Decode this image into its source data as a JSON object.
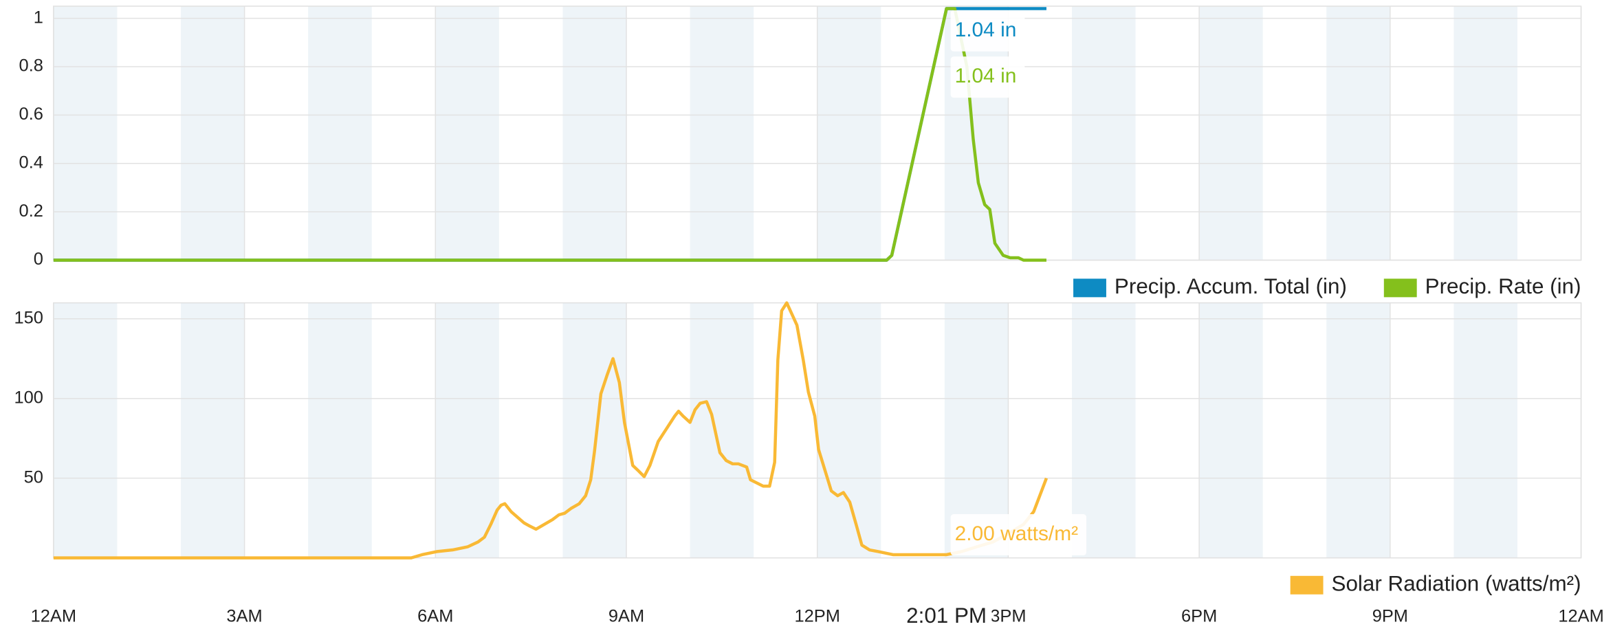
{
  "chart_data": [
    {
      "type": "line",
      "xlim": [
        0,
        24
      ],
      "ylim": [
        0,
        1.05
      ],
      "yticks": [
        0,
        0.2,
        0.4,
        0.6,
        0.8,
        1
      ],
      "series": [
        {
          "name": "Precip. Accum. Total (in)",
          "color": "#0e8bc3",
          "tooltip": "1.04 in",
          "x": [
            0,
            13.09,
            13.17,
            14.03,
            14.16,
            15.6
          ],
          "values": [
            0,
            0,
            0.02,
            1.04,
            1.04,
            1.04
          ]
        },
        {
          "name": "Precip. Rate (in)",
          "color": "#84c01c",
          "tooltip": "1.04 in",
          "x": [
            0,
            13.09,
            13.17,
            14.03,
            14.16,
            14.35,
            14.45,
            14.53,
            14.63,
            14.71,
            14.79,
            14.92,
            15.03,
            15.16,
            15.24,
            15.6
          ],
          "values": [
            0,
            0,
            0.02,
            1.04,
            1.04,
            0.8,
            0.5,
            0.32,
            0.23,
            0.21,
            0.07,
            0.02,
            0.01,
            0.01,
            0,
            0
          ]
        }
      ]
    },
    {
      "type": "line",
      "xlim": [
        0,
        24
      ],
      "ylim": [
        0,
        160
      ],
      "yticks": [
        50,
        100,
        150
      ],
      "xticks": [
        {
          "value": 0,
          "label": "12AM"
        },
        {
          "value": 3,
          "label": "3AM"
        },
        {
          "value": 6,
          "label": "6AM"
        },
        {
          "value": 9,
          "label": "9AM"
        },
        {
          "value": 12,
          "label": "12PM"
        },
        {
          "value": 15,
          "label": "3PM"
        },
        {
          "value": 18,
          "label": "6PM"
        },
        {
          "value": 21,
          "label": "9PM"
        },
        {
          "value": 24,
          "label": "12AM"
        }
      ],
      "cursor": {
        "value": 14.03,
        "label": "2:01 PM"
      },
      "series": [
        {
          "name": "Solar Radiation (watts/m²)",
          "color": "#f9b935",
          "tooltip": "2.00 watts/m²",
          "x": [
            0,
            5.62,
            5.79,
            6.03,
            6.27,
            6.51,
            6.67,
            6.77,
            6.87,
            6.97,
            7.03,
            7.09,
            7.19,
            7.39,
            7.48,
            7.58,
            7.71,
            7.84,
            7.94,
            8.03,
            8.13,
            8.26,
            8.36,
            8.44,
            8.5,
            8.6,
            8.7,
            8.79,
            8.89,
            8.97,
            9.1,
            9.18,
            9.28,
            9.37,
            9.5,
            9.63,
            9.76,
            9.82,
            9.89,
            10.0,
            10.08,
            10.16,
            10.26,
            10.34,
            10.47,
            10.57,
            10.67,
            10.76,
            10.89,
            10.95,
            11.05,
            11.15,
            11.25,
            11.33,
            11.38,
            11.44,
            11.52,
            11.6,
            11.68,
            11.78,
            11.86,
            11.96,
            12.02,
            12.12,
            12.22,
            12.32,
            12.41,
            12.51,
            12.61,
            12.7,
            12.82,
            12.95,
            13.19,
            13.7,
            14.03,
            14.27,
            14.51,
            14.76,
            14.99,
            15.24,
            15.4,
            15.6
          ],
          "values": [
            0,
            0,
            2,
            4,
            5,
            7,
            10,
            13,
            21,
            30,
            33,
            34,
            29,
            22,
            20,
            18,
            21,
            24,
            27,
            28,
            31,
            34,
            39,
            49,
            67,
            103,
            115,
            125,
            110,
            85,
            58,
            55,
            51,
            58,
            73,
            81,
            89,
            92,
            89,
            85,
            93,
            97,
            98,
            90,
            66,
            61,
            59,
            59,
            57,
            49,
            47,
            45,
            45,
            60,
            124,
            155,
            160,
            153,
            146,
            124,
            104,
            89,
            68,
            55,
            42,
            39,
            41,
            35,
            21,
            8,
            5,
            4,
            2,
            2,
            2,
            4,
            7,
            10,
            15,
            21,
            29,
            50
          ]
        }
      ]
    }
  ]
}
